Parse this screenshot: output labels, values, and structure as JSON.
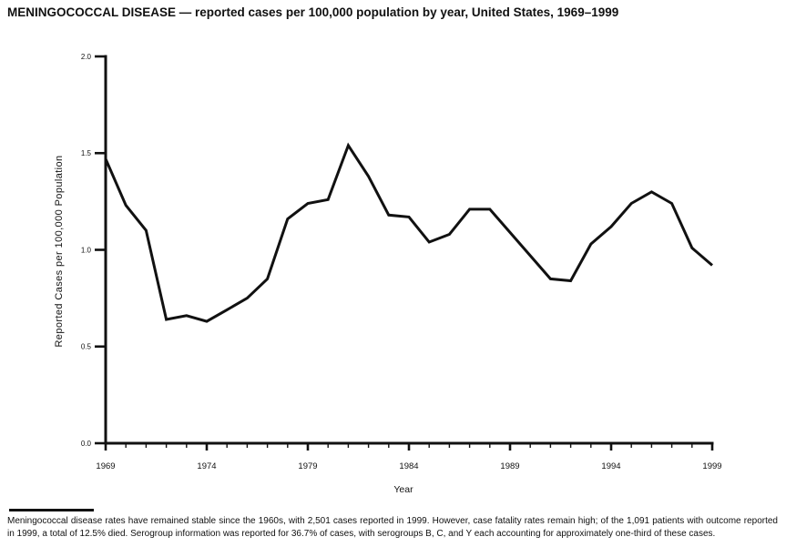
{
  "title": "MENINGOCOCCAL DISEASE — reported cases per 100,000 population by year, United States, 1969–1999",
  "chart_data": {
    "type": "line",
    "title": "MENINGOCOCCAL DISEASE — reported cases per 100,000 population by year, United States, 1969–1999",
    "xlabel": "Year",
    "ylabel": "Reported Cases per 100,000 Population",
    "xlim": [
      1969,
      1999
    ],
    "ylim": [
      0.0,
      2.0
    ],
    "grid": false,
    "legend": false,
    "line_color": "#111111",
    "x": [
      1969,
      1970,
      1971,
      1972,
      1973,
      1974,
      1975,
      1976,
      1977,
      1978,
      1979,
      1980,
      1981,
      1982,
      1983,
      1984,
      1985,
      1986,
      1987,
      1988,
      1989,
      1990,
      1991,
      1992,
      1993,
      1994,
      1995,
      1996,
      1997,
      1998,
      1999
    ],
    "values": [
      1.47,
      1.23,
      1.1,
      0.64,
      0.66,
      0.63,
      0.69,
      0.75,
      0.85,
      1.16,
      1.24,
      1.26,
      1.54,
      1.38,
      1.18,
      1.17,
      1.04,
      1.08,
      1.21,
      1.21,
      1.09,
      0.97,
      0.85,
      0.84,
      1.03,
      1.12,
      1.24,
      1.3,
      1.24,
      1.01,
      0.92
    ],
    "x_major_ticks": [
      1969,
      1974,
      1979,
      1984,
      1989,
      1994,
      1999
    ],
    "x_minor_tick_every": 1,
    "y_ticks": [
      0.0,
      0.5,
      1.0,
      1.5,
      2.0
    ],
    "y_tick_labels": [
      "0.0",
      "0.5",
      "1.0",
      "1.5",
      "2.0"
    ]
  },
  "footnote": {
    "text": "Meningococcal disease rates have remained stable since the 1960s, with 2,501 cases reported in 1999. However, case fatality rates remain high; of the 1,091 patients with outcome reported in 1999, a total of 12.5% died. Serogroup information was reported for 36.7% of cases, with serogroups B, C, and Y each accounting for approximately one-third of these cases."
  }
}
